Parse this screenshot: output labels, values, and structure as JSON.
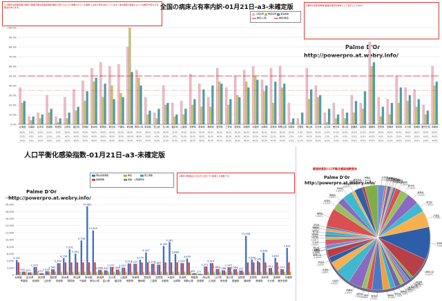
{
  "colors": {
    "beds_pct": "#f2b8c6",
    "severe_pct": "#c9c36e",
    "hotel_pct": "#4aa0a8",
    "beds_tick_red": "#e03030",
    "severe_tick_red": "#c0282a",
    "index_blue": "#3f6fc0",
    "index_red": "#d04040",
    "index_green": "#8fbf4a",
    "grid": "#dddddd",
    "note_red": "#cc0000"
  },
  "top": {
    "title": "全国の病床占有率内訳-01月21日-a3-未確定版",
    "palme": "Palme D'Or",
    "url": "http://powerpro.at.webry.info/",
    "legend": [
      "入院患者",
      "重症患者",
      "宿泊療養",
      "推奨(入院)",
      "推奨(重症)"
    ],
    "note_left": "この数字は感染症等の病床で確保可能な感染症病床(推奨で使えるように準備されている病床)で占める率を表示しています。他の病床や施設によっては数字が変わる可能性があります。",
    "note_right": "※累計の判定基準等:数値の目安を参考として表示しています。"
  },
  "bottom_left": {
    "title": "人口平衡化感染指数-01月21日-a3-未確定版",
    "palme": "Palme D'Or",
    "url": "http://powerpro.at.webry.info/",
    "legend": [
      "現在感染者数",
      "療養者数",
      "重症",
      "死亡者数",
      "療養・入院調整中"
    ],
    "note": "※累計の数値は人口10万人当たりで換算した指数です。"
  },
  "pie": {
    "title": "都道府県別人口平衡化感染指数割合",
    "palme": "Palme D'Or",
    "url": "http://powerpro.at.webry.info/"
  },
  "chart_data": [
    {
      "type": "bar",
      "title": "全国の病床占有率内訳-01月21日-a3-未確定版",
      "categories": [
        "北海道",
        "青森県",
        "岩手県",
        "宮城県",
        "秋田県",
        "山形県",
        "福島県",
        "茨城県",
        "栃木県",
        "群馬県",
        "埼玉県",
        "千葉県",
        "東京都",
        "神奈川県",
        "新潟県",
        "富山県",
        "石川県",
        "福井県",
        "山梨県",
        "長野県",
        "岐阜県",
        "静岡県",
        "愛知県",
        "三重県",
        "滋賀県",
        "京都府",
        "大阪府",
        "兵庫県",
        "奈良県",
        "和歌山県",
        "鳥取県",
        "島根県",
        "岡山県",
        "広島県",
        "山口県",
        "徳島県",
        "香川県",
        "愛媛県",
        "高知県",
        "福岡県",
        "佐賀県",
        "長崎県",
        "熊本県",
        "大分県",
        "宮崎県",
        "鹿児島県",
        "沖縄県"
      ],
      "ylim": [
        0,
        100
      ],
      "yticks": [
        "0.0%",
        "10.0%",
        "20.0%",
        "30.0%",
        "40.0%",
        "50.0%",
        "60.0%",
        "70.0%",
        "80.0%",
        "90.0%",
        "100.0%"
      ],
      "series": [
        {
          "name": "入院患者",
          "values": [
            38,
            8,
            12,
            30,
            8,
            28,
            36,
            45,
            58,
            64,
            60,
            62,
            80,
            56,
            28,
            12,
            40,
            22,
            24,
            52,
            42,
            28,
            58,
            38,
            50,
            56,
            60,
            46,
            58,
            60,
            22,
            6,
            58,
            40,
            12,
            22,
            16,
            30,
            22,
            85,
            28,
            26,
            50,
            38,
            36,
            20,
            60
          ]
        },
        {
          "name": "重症患者",
          "values": [
            22,
            4,
            6,
            12,
            2,
            6,
            14,
            24,
            44,
            28,
            40,
            32,
            100,
            48,
            10,
            6,
            20,
            8,
            10,
            20,
            18,
            18,
            44,
            20,
            30,
            44,
            50,
            34,
            22,
            38,
            2,
            0,
            26,
            28,
            2,
            6,
            6,
            12,
            16,
            60,
            8,
            10,
            22,
            24,
            18,
            10,
            40
          ]
        },
        {
          "name": "宿泊療養",
          "values": [
            24,
            8,
            10,
            16,
            6,
            12,
            18,
            34,
            48,
            42,
            26,
            28,
            54,
            40,
            14,
            16,
            22,
            10,
            16,
            26,
            36,
            40,
            42,
            26,
            28,
            38,
            46,
            40,
            44,
            42,
            6,
            12,
            36,
            30,
            16,
            10,
            12,
            24,
            34,
            64,
            18,
            22,
            38,
            30,
            26,
            14,
            44
          ]
        }
      ]
    },
    {
      "type": "bar",
      "title": "人口平衡化感染指数-01月21日-a3-未確定版",
      "categories": [
        "北海道",
        "青森県",
        "岩手県",
        "宮城県",
        "秋田県",
        "山形県",
        "福島県",
        "茨城県",
        "栃木県",
        "群馬県",
        "埼玉県",
        "千葉県",
        "東京都",
        "神奈川県",
        "新潟県",
        "富山県",
        "石川県",
        "福井県",
        "山梨県",
        "長野県",
        "岐阜県",
        "静岡県",
        "愛知県",
        "三重県",
        "滋賀県",
        "京都府",
        "大阪府",
        "兵庫県",
        "奈良県",
        "和歌山県",
        "鳥取県",
        "島根県",
        "岡山県",
        "広島県",
        "山口県",
        "徳島県",
        "香川県",
        "愛媛県",
        "高知県",
        "福岡県",
        "佐賀県",
        "長崎県",
        "熊本県",
        "大分県",
        "宮崎県",
        "鹿児島県",
        "沖縄県"
      ],
      "ylim": [
        0,
        22000
      ],
      "yticks": [
        "0",
        "2,000",
        "4,000",
        "6,000",
        "8,000",
        "10,000",
        "12,000",
        "14,000",
        "16,000",
        "18,000",
        "20,000",
        "22,000"
      ],
      "series": [
        {
          "name": "現在感染者数",
          "values": [
            4205,
            902,
            672,
            2205,
            470,
            1028,
            1565,
            3294,
            4756,
            7251,
            5991,
            9758,
            19481,
            12625,
            1390,
            1262,
            2197,
            1489,
            2025,
            3217,
            3122,
            4279,
            6347,
            3122,
            2889,
            8189,
            9281,
            5886,
            3314,
            4639,
            461,
            277,
            2372,
            3314,
            1662,
            1286,
            2145,
            1584,
            1201,
            11056,
            4356,
            3906,
            6308,
            1911,
            4833,
            1577,
            7631
          ]
        }
      ]
    },
    {
      "type": "pie",
      "title": "都道府県別人口平衡化感染指数割合",
      "labels": [
        "北海道",
        "青森県",
        "岩手県",
        "宮城県",
        "秋田県",
        "山形県",
        "福島県",
        "茨城県",
        "栃木県",
        "群馬県",
        "埼玉県",
        "千葉県",
        "東京都",
        "神奈川県",
        "新潟県",
        "富山県",
        "石川県",
        "福井県",
        "山梨県",
        "長野県",
        "岐阜県",
        "静岡県",
        "愛知県",
        "三重県",
        "滋賀県",
        "京都府",
        "大阪府",
        "兵庫県",
        "奈良県",
        "和歌山県",
        "鳥取県",
        "島根県",
        "岡山県",
        "広島県",
        "山口県",
        "徳島県",
        "香川県",
        "愛媛県",
        "高知県",
        "福岡県",
        "佐賀県",
        "長崎県",
        "熊本県",
        "大分県",
        "宮崎県",
        "鹿児島県",
        "沖縄県"
      ],
      "values": [
        2.0,
        0.5,
        0.3,
        1.0,
        0.2,
        0.5,
        0.7,
        1.6,
        2.3,
        3.5,
        2.9,
        4.7,
        9.4,
        6.1,
        0.7,
        0.6,
        1.1,
        0.7,
        1.0,
        1.6,
        1.5,
        2.1,
        3.1,
        1.5,
        1.4,
        4.0,
        4.5,
        2.8,
        1.6,
        2.2,
        0.2,
        0.1,
        1.1,
        1.6,
        0.8,
        0.6,
        1.0,
        0.8,
        0.6,
        5.3,
        2.1,
        1.9,
        3.0,
        0.9,
        2.3,
        0.8,
        3.7
      ],
      "legend_position": "none"
    }
  ]
}
